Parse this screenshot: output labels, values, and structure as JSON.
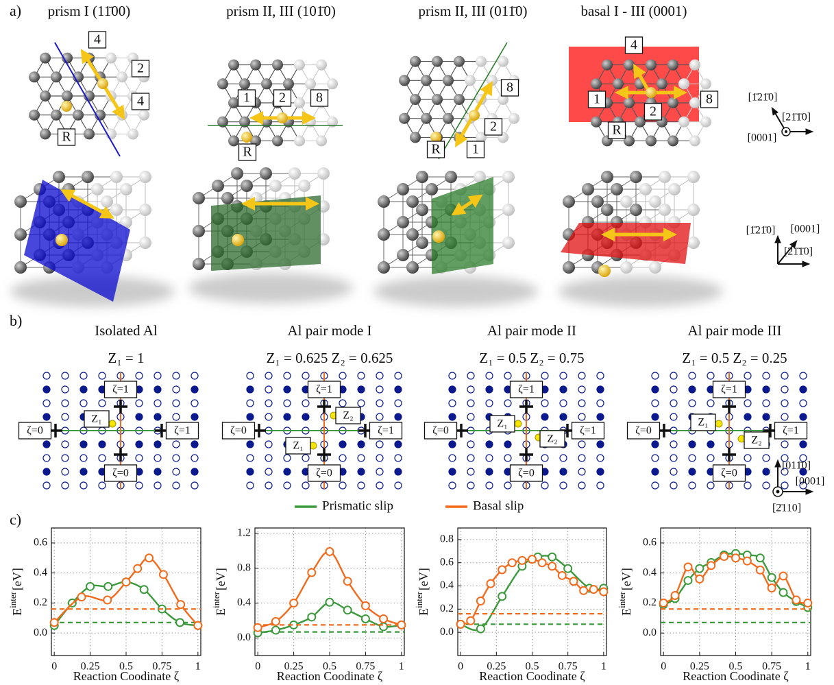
{
  "panel_labels": [
    "a)",
    "b)",
    "c)"
  ],
  "panel_a": {
    "columns": [
      {
        "title": "prism I (11̄00)",
        "labels": [
          "4",
          "2",
          "4",
          "R"
        ]
      },
      {
        "title": "prism II, III (101̄0)",
        "labels": [
          "1",
          "2",
          "8",
          "R"
        ]
      },
      {
        "title": "prism II, III (011̄0)",
        "labels": [
          "8",
          "2",
          "1",
          "R"
        ]
      },
      {
        "title": "basal I - III (0001)",
        "labels": [
          "4",
          "1",
          "2",
          "8",
          "R"
        ]
      }
    ],
    "axes_top": [
      "[1̄21̄0]",
      "[21̄1̄0]",
      "[0001]"
    ],
    "axes_bottom": [
      "[1̄21̄0]",
      "[0001]",
      "[21̄1̄0]"
    ]
  },
  "panel_b": {
    "columns": [
      {
        "title": "Isolated Al",
        "z_text": "Z₁ = 1",
        "zeta_labels": [
          "ζ=1",
          "ζ=0",
          "ζ=1",
          "ζ=0"
        ],
        "z_labels": [
          "Z₁"
        ]
      },
      {
        "title": "Al pair mode I",
        "z_text": "Z₁ = 0.625  Z₂ = 0.625",
        "zeta_labels": [
          "ζ=1",
          "ζ=0",
          "ζ=1",
          "ζ=0"
        ],
        "z_labels": [
          "Z₂",
          "Z₁"
        ]
      },
      {
        "title": "Al pair mode II",
        "z_text": "Z₁ = 0.5  Z₂ = 0.75",
        "zeta_labels": [
          "ζ=1",
          "ζ=0",
          "ζ=1",
          "ζ=0"
        ],
        "z_labels": [
          "Z₁",
          "Z₂"
        ]
      },
      {
        "title": "Al pair mode III",
        "z_text": "Z₁ = 0.5  Z₂ = 0.25",
        "zeta_labels": [
          "ζ=1",
          "ζ=0",
          "ζ=1",
          "ζ=0"
        ],
        "z_labels": [
          "Z₁",
          "Z₂"
        ]
      }
    ],
    "axes": [
      "[011̄0]",
      "[0001]",
      "[2̄110]"
    ]
  },
  "chart_data": [
    {
      "type": "line",
      "xlabel": "Reaction Coodinate ζ",
      "ylabel": {
        "base": "E",
        "sup": "inter",
        "unit": "[eV]"
      },
      "xlim": [
        -0.02,
        1.02
      ],
      "ylim": [
        -0.15,
        0.7
      ],
      "xticks": [
        0,
        0.25,
        0.5,
        0.75,
        1
      ],
      "yticks": [
        {
          "value": 0,
          "label": "0.0"
        },
        0.2,
        0.4,
        0.6
      ],
      "grid": true,
      "series": [
        {
          "name": "Prismatic slip",
          "color": "#3c9a3c",
          "reference": 0.07,
          "x": [
            0,
            0.125,
            0.25,
            0.375,
            0.5,
            0.625,
            0.75,
            0.875,
            1
          ],
          "values": [
            0.05,
            0.2,
            0.31,
            0.31,
            0.34,
            0.29,
            0.16,
            0.07,
            0.05
          ]
        },
        {
          "name": "Basal slip",
          "color": "#f26a1b",
          "reference": 0.16,
          "x": [
            0,
            0.19,
            0.37,
            0.5,
            0.58,
            0.66,
            0.76,
            0.88,
            1
          ],
          "values": [
            0.07,
            0.24,
            0.22,
            0.34,
            0.43,
            0.5,
            0.39,
            0.19,
            0.05
          ]
        }
      ]
    },
    {
      "type": "line",
      "xlabel": "Reaction Coodinate ζ",
      "ylabel": {
        "base": "E",
        "sup": "inter",
        "unit": "[eV]"
      },
      "xlim": [
        -0.02,
        1.02
      ],
      "ylim": [
        -0.2,
        1.26
      ],
      "xticks": [
        0,
        0.25,
        0.5,
        0.75,
        1
      ],
      "yticks": [
        {
          "value": 0,
          "label": "0.0"
        },
        0.4,
        0.8,
        1.2
      ],
      "grid": true,
      "series": [
        {
          "color": "#3c9a3c",
          "reference": 0.07,
          "x": [
            0,
            0.125,
            0.25,
            0.375,
            0.5,
            0.625,
            0.75,
            0.875,
            1
          ],
          "values": [
            0.06,
            0.09,
            0.15,
            0.24,
            0.41,
            0.32,
            0.22,
            0.13,
            0.15
          ]
        },
        {
          "color": "#f26a1b",
          "reference": 0.15,
          "x": [
            0,
            0.125,
            0.25,
            0.375,
            0.5,
            0.625,
            0.75,
            0.875,
            1
          ],
          "values": [
            0.12,
            0.19,
            0.4,
            0.75,
            0.99,
            0.65,
            0.37,
            0.22,
            0.15
          ]
        }
      ]
    },
    {
      "type": "line",
      "xlabel": "Reaction Coodinate ζ",
      "ylabel": {
        "base": "E",
        "sup": "inter",
        "unit": "[eV]"
      },
      "xlim": [
        -0.02,
        1.02
      ],
      "ylim": [
        -0.2,
        0.9
      ],
      "xticks": [
        0,
        0.25,
        0.5,
        0.75,
        1
      ],
      "yticks": [
        {
          "value": 0,
          "label": "0.0"
        },
        0.2,
        0.4,
        0.6,
        0.8
      ],
      "grid": true,
      "series": [
        {
          "color": "#3c9a3c",
          "reference": 0.07,
          "x": [
            0,
            0.14,
            0.29,
            0.43,
            0.54,
            0.64,
            0.75,
            0.9,
            1
          ],
          "values": [
            0.07,
            0.03,
            0.31,
            0.57,
            0.65,
            0.65,
            0.55,
            0.38,
            0.38
          ]
        },
        {
          "color": "#f26a1b",
          "reference": 0.16,
          "x": [
            0,
            0.07,
            0.14,
            0.21,
            0.29,
            0.36,
            0.43,
            0.5,
            0.57,
            0.64,
            0.71,
            0.79,
            0.86,
            0.93,
            1
          ],
          "values": [
            0.07,
            0.1,
            0.27,
            0.42,
            0.54,
            0.6,
            0.62,
            0.63,
            0.6,
            0.57,
            0.49,
            0.44,
            0.36,
            0.37,
            0.35
          ]
        }
      ]
    },
    {
      "type": "line",
      "xlabel": "Reaction Coodinate ζ",
      "ylabel": {
        "base": "E",
        "sup": "inter",
        "unit": "[eV]"
      },
      "xlim": [
        -0.02,
        1.02
      ],
      "ylim": [
        -0.15,
        0.7
      ],
      "xticks": [
        0,
        0.25,
        0.5,
        0.75,
        1
      ],
      "yticks": [
        {
          "value": 0,
          "label": "0.0"
        },
        0.2,
        0.4,
        0.6
      ],
      "grid": true,
      "series": [
        {
          "color": "#3c9a3c",
          "reference": 0.07,
          "x": [
            0,
            0.08,
            0.17,
            0.25,
            0.33,
            0.42,
            0.5,
            0.58,
            0.67,
            0.75,
            0.83,
            0.92,
            1
          ],
          "values": [
            0.19,
            0.23,
            0.35,
            0.43,
            0.47,
            0.52,
            0.53,
            0.52,
            0.5,
            0.37,
            0.27,
            0.21,
            0.17
          ]
        },
        {
          "color": "#f26a1b",
          "reference": 0.16,
          "x": [
            0,
            0.08,
            0.17,
            0.25,
            0.33,
            0.42,
            0.5,
            0.58,
            0.67,
            0.75,
            0.83,
            0.92,
            1
          ],
          "values": [
            0.2,
            0.25,
            0.44,
            0.36,
            0.45,
            0.51,
            0.5,
            0.48,
            0.42,
            0.3,
            0.38,
            0.22,
            0.2
          ]
        }
      ]
    }
  ]
}
